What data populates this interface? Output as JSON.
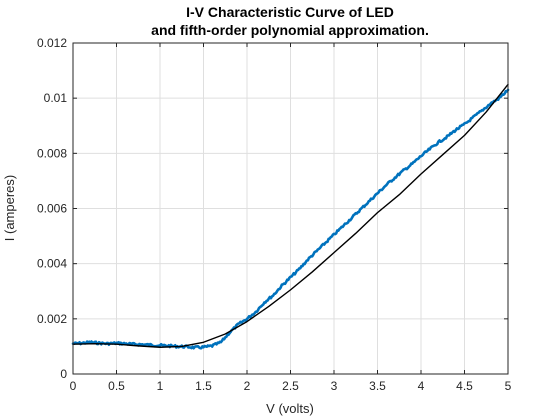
{
  "chart_data": {
    "type": "line",
    "title": [
      "I-V Characteristic Curve of LED",
      "and fifth-order polynomial approximation."
    ],
    "xlabel": "V (volts)",
    "ylabel": "I (amperes)",
    "xlim": [
      0,
      5
    ],
    "ylim": [
      0,
      0.012
    ],
    "x_ticks": [
      "0",
      "0.5",
      "1",
      "1.5",
      "2",
      "2.5",
      "3",
      "3.5",
      "4",
      "4.5",
      "5"
    ],
    "y_ticks": [
      "0",
      "0.002",
      "0.004",
      "0.006",
      "0.008",
      "0.01",
      "0.012"
    ],
    "grid": true,
    "legend": "none",
    "series": [
      {
        "color": "#0072BD",
        "style": "noisy-measured",
        "x": [
          0,
          0.1,
          0.2,
          0.3,
          0.4,
          0.5,
          0.6,
          0.7,
          0.8,
          0.9,
          1.0,
          1.1,
          1.2,
          1.3,
          1.4,
          1.5,
          1.6,
          1.7,
          1.8,
          1.9,
          2.0,
          2.1,
          2.2,
          2.3,
          2.4,
          2.5,
          2.6,
          2.7,
          2.8,
          2.9,
          3.0,
          3.1,
          3.2,
          3.3,
          3.4,
          3.5,
          3.6,
          3.7,
          3.8,
          3.9,
          4.0,
          4.1,
          4.2,
          4.3,
          4.4,
          4.5,
          4.6,
          4.7,
          4.8,
          4.9,
          5.0
        ],
        "y": [
          0.0011,
          0.00112,
          0.00115,
          0.00112,
          0.0011,
          0.00112,
          0.0011,
          0.00108,
          0.00107,
          0.00105,
          0.00104,
          0.00102,
          0.001,
          0.00099,
          0.00096,
          0.00097,
          0.00102,
          0.00115,
          0.0015,
          0.0018,
          0.002,
          0.00225,
          0.0026,
          0.00285,
          0.0032,
          0.0035,
          0.0038,
          0.00415,
          0.00445,
          0.00475,
          0.00505,
          0.00535,
          0.00565,
          0.00595,
          0.00625,
          0.00655,
          0.00685,
          0.00712,
          0.00738,
          0.00762,
          0.0079,
          0.00815,
          0.0084,
          0.0086,
          0.00885,
          0.00905,
          0.0093,
          0.00955,
          0.0098,
          0.01,
          0.0103
        ]
      },
      {
        "color": "#000000",
        "style": "fit",
        "x": [
          0,
          0.25,
          0.5,
          0.75,
          1.0,
          1.25,
          1.5,
          1.75,
          2.0,
          2.25,
          2.5,
          2.75,
          3.0,
          3.25,
          3.5,
          3.75,
          4.0,
          4.25,
          4.5,
          4.75,
          5.0
        ],
        "y": [
          0.00108,
          0.0011,
          0.00108,
          0.00102,
          0.00097,
          0.001,
          0.00115,
          0.00145,
          0.0019,
          0.00245,
          0.00305,
          0.0037,
          0.0044,
          0.0051,
          0.00585,
          0.0065,
          0.00725,
          0.00795,
          0.00865,
          0.0095,
          0.0105
        ]
      }
    ]
  }
}
